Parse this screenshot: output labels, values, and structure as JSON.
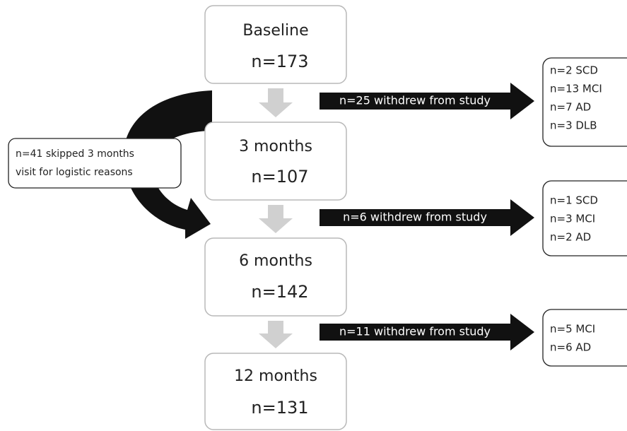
{
  "stages": [
    {
      "title": "Baseline",
      "count": "n=173"
    },
    {
      "title": "3 months",
      "count": "n=107"
    },
    {
      "title": "6 months",
      "count": "n=142"
    },
    {
      "title": "12 months",
      "count": "n=131"
    }
  ],
  "withdrawals": [
    {
      "label": "n=25 withdrew from study",
      "details": [
        "n=2 SCD",
        "n=13 MCI",
        "n=7 AD",
        "n=3 DLB"
      ]
    },
    {
      "label": "n=6 withdrew from study",
      "details": [
        "n=1 SCD",
        "n=3 MCI",
        "n=2 AD"
      ]
    },
    {
      "label": "n=11 withdrew from study",
      "details": [
        "n=5 MCI",
        "n=6 AD"
      ]
    }
  ],
  "skip_note": {
    "lines": [
      "n=41 skipped 3 months",
      "visit for logistic reasons"
    ]
  }
}
